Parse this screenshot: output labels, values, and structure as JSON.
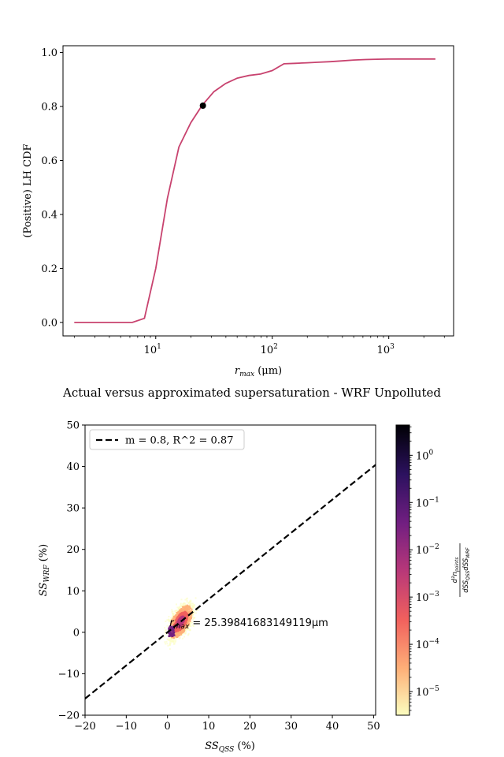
{
  "chart_data": [
    {
      "type": "line",
      "title": "",
      "xlabel_base": "r",
      "xlabel_sub": "max",
      "xlabel_unit": " (μm)",
      "ylabel": "(Positive) LH CDF",
      "xscale": "log",
      "xlim": [
        1.6,
        3600
      ],
      "ylim": [
        -0.05,
        1.025
      ],
      "x_ticks": [
        {
          "value": 10,
          "base": "10",
          "exp": "1"
        },
        {
          "value": 100,
          "base": "10",
          "exp": "2"
        },
        {
          "value": 1000,
          "base": "10",
          "exp": "3"
        }
      ],
      "y_ticks": [
        {
          "value": 0.0,
          "label": "0.0"
        },
        {
          "value": 0.2,
          "label": "0.2"
        },
        {
          "value": 0.4,
          "label": "0.4"
        },
        {
          "value": 0.6,
          "label": "0.6"
        },
        {
          "value": 0.8,
          "label": "0.8"
        },
        {
          "value": 1.0,
          "label": "1.0"
        }
      ],
      "line_color": "#c8436f",
      "x": [
        2.0,
        2.5,
        3.2,
        4.0,
        5.0,
        6.3,
        8.0,
        10.0,
        12.6,
        15.8,
        20.0,
        25.1,
        31.6,
        39.8,
        50.1,
        63.1,
        79.4,
        100,
        126,
        158,
        200,
        251,
        316,
        398,
        501,
        631,
        794,
        1000,
        1259,
        1585,
        1995,
        2512
      ],
      "y": [
        0.0,
        0.0,
        0.0,
        0.0,
        0.0,
        0.0,
        0.015,
        0.2,
        0.46,
        0.65,
        0.74,
        0.805,
        0.855,
        0.885,
        0.905,
        0.915,
        0.92,
        0.933,
        0.958,
        0.96,
        0.962,
        0.964,
        0.966,
        0.969,
        0.972,
        0.974,
        0.975,
        0.9755,
        0.976,
        0.976,
        0.976,
        0.976
      ],
      "highlight_point": {
        "x": 25.398,
        "y": 0.803
      }
    },
    {
      "type": "scatter",
      "title": "Actual versus approximated supersaturation - WRF Unpolluted",
      "xlabel_base": "SS",
      "xlabel_sub": "QSS",
      "xlabel_unit": " (%)",
      "ylabel_base": "SS",
      "ylabel_sub": "WRF",
      "ylabel_unit": " (%)",
      "xlim": [
        -20,
        50.5
      ],
      "ylim": [
        -20,
        50
      ],
      "x_ticks": [
        -20,
        -10,
        0,
        10,
        20,
        30,
        40,
        50
      ],
      "y_ticks": [
        -20,
        -10,
        0,
        10,
        20,
        30,
        40,
        50
      ],
      "fit_line": {
        "slope": 0.8,
        "intercept": 0,
        "label": "m = 0.8, R^2 = 0.87"
      },
      "annotation": {
        "base": "r",
        "sub": "max",
        "text": " = 25.39841683149119μm",
        "x": 0.5,
        "y": 1.5
      },
      "cloud": {
        "x_center": 3.2,
        "y_center": 2.8,
        "x_range": [
          -1,
          9
        ],
        "y_range": [
          -5,
          12
        ]
      },
      "colorbar": {
        "label": "d²n_points / dSS_QSS dSS_WRF",
        "scale": "log",
        "range_exp": [
          -5.5,
          0.64
        ],
        "ticks": [
          {
            "exp": 0,
            "base": "10",
            "label": "0"
          },
          {
            "exp": -1,
            "base": "10",
            "label": "−1"
          },
          {
            "exp": -2,
            "base": "10",
            "label": "−2"
          },
          {
            "exp": -3,
            "base": "10",
            "label": "−3"
          },
          {
            "exp": -4,
            "base": "10",
            "label": "−4"
          },
          {
            "exp": -5,
            "base": "10",
            "label": "−5"
          }
        ],
        "colormap": [
          "#fcfdbf",
          "#feb078",
          "#f1605d",
          "#b73779",
          "#721f81",
          "#2c115f",
          "#000004"
        ]
      }
    }
  ]
}
